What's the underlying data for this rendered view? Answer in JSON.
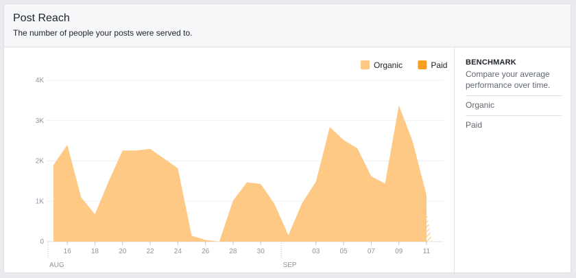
{
  "header": {
    "title": "Post Reach",
    "subtitle": "The number of people your posts were served to."
  },
  "benchmark": {
    "title": "BENCHMARK",
    "description": "Compare your average performance over time.",
    "items": [
      "Organic",
      "Paid"
    ]
  },
  "colors": {
    "organic": "#fec885",
    "paid": "#f5a01f",
    "grid": "#eceff3",
    "axis_text": "#90949c"
  },
  "chart_data": {
    "type": "area",
    "legend": {
      "placement": "top-right"
    },
    "x_tick_labels": [
      "16",
      "18",
      "20",
      "22",
      "24",
      "26",
      "28",
      "30",
      "03",
      "05",
      "07",
      "09",
      "11"
    ],
    "x_tick_dates": [
      "2024-08-16",
      "2024-08-18",
      "2024-08-20",
      "2024-08-22",
      "2024-08-24",
      "2024-08-26",
      "2024-08-28",
      "2024-08-30",
      "2024-09-03",
      "2024-09-05",
      "2024-09-07",
      "2024-09-09",
      "2024-09-11"
    ],
    "month_labels": [
      {
        "label": "AUG",
        "date": "2024-08-15"
      },
      {
        "label": "SEP",
        "date": "2024-09-01"
      }
    ],
    "y_ticks": [
      0,
      1000,
      2000,
      3000,
      4000
    ],
    "y_tick_labels": [
      "0",
      "1K",
      "2K",
      "3K",
      "4K"
    ],
    "ylim": [
      0,
      4000
    ],
    "x": [
      "2024-08-15",
      "2024-08-16",
      "2024-08-17",
      "2024-08-18",
      "2024-08-19",
      "2024-08-20",
      "2024-08-21",
      "2024-08-22",
      "2024-08-23",
      "2024-08-24",
      "2024-08-25",
      "2024-08-26",
      "2024-08-27",
      "2024-08-28",
      "2024-08-29",
      "2024-08-30",
      "2024-08-31",
      "2024-09-01",
      "2024-09-02",
      "2024-09-03",
      "2024-09-04",
      "2024-09-05",
      "2024-09-06",
      "2024-09-07",
      "2024-09-08",
      "2024-09-09",
      "2024-09-10",
      "2024-09-11"
    ],
    "xlim": [
      "2024-08-15",
      "2024-09-11"
    ],
    "series": [
      {
        "name": "Organic",
        "values": [
          1900,
          2400,
          1100,
          680,
          1500,
          2260,
          2260,
          2300,
          2060,
          1820,
          150,
          40,
          0,
          1020,
          1470,
          1430,
          930,
          160,
          960,
          1490,
          2840,
          2520,
          2310,
          1620,
          1440,
          3380,
          2480,
          1150
        ]
      },
      {
        "name": "Paid",
        "values": [
          0,
          0,
          0,
          0,
          0,
          0,
          0,
          0,
          0,
          0,
          0,
          0,
          0,
          0,
          0,
          0,
          0,
          0,
          0,
          0,
          0,
          0,
          0,
          0,
          0,
          0,
          0,
          0
        ]
      }
    ],
    "partial_day": {
      "date": "2024-09-11",
      "value": 750
    },
    "grid": true
  }
}
